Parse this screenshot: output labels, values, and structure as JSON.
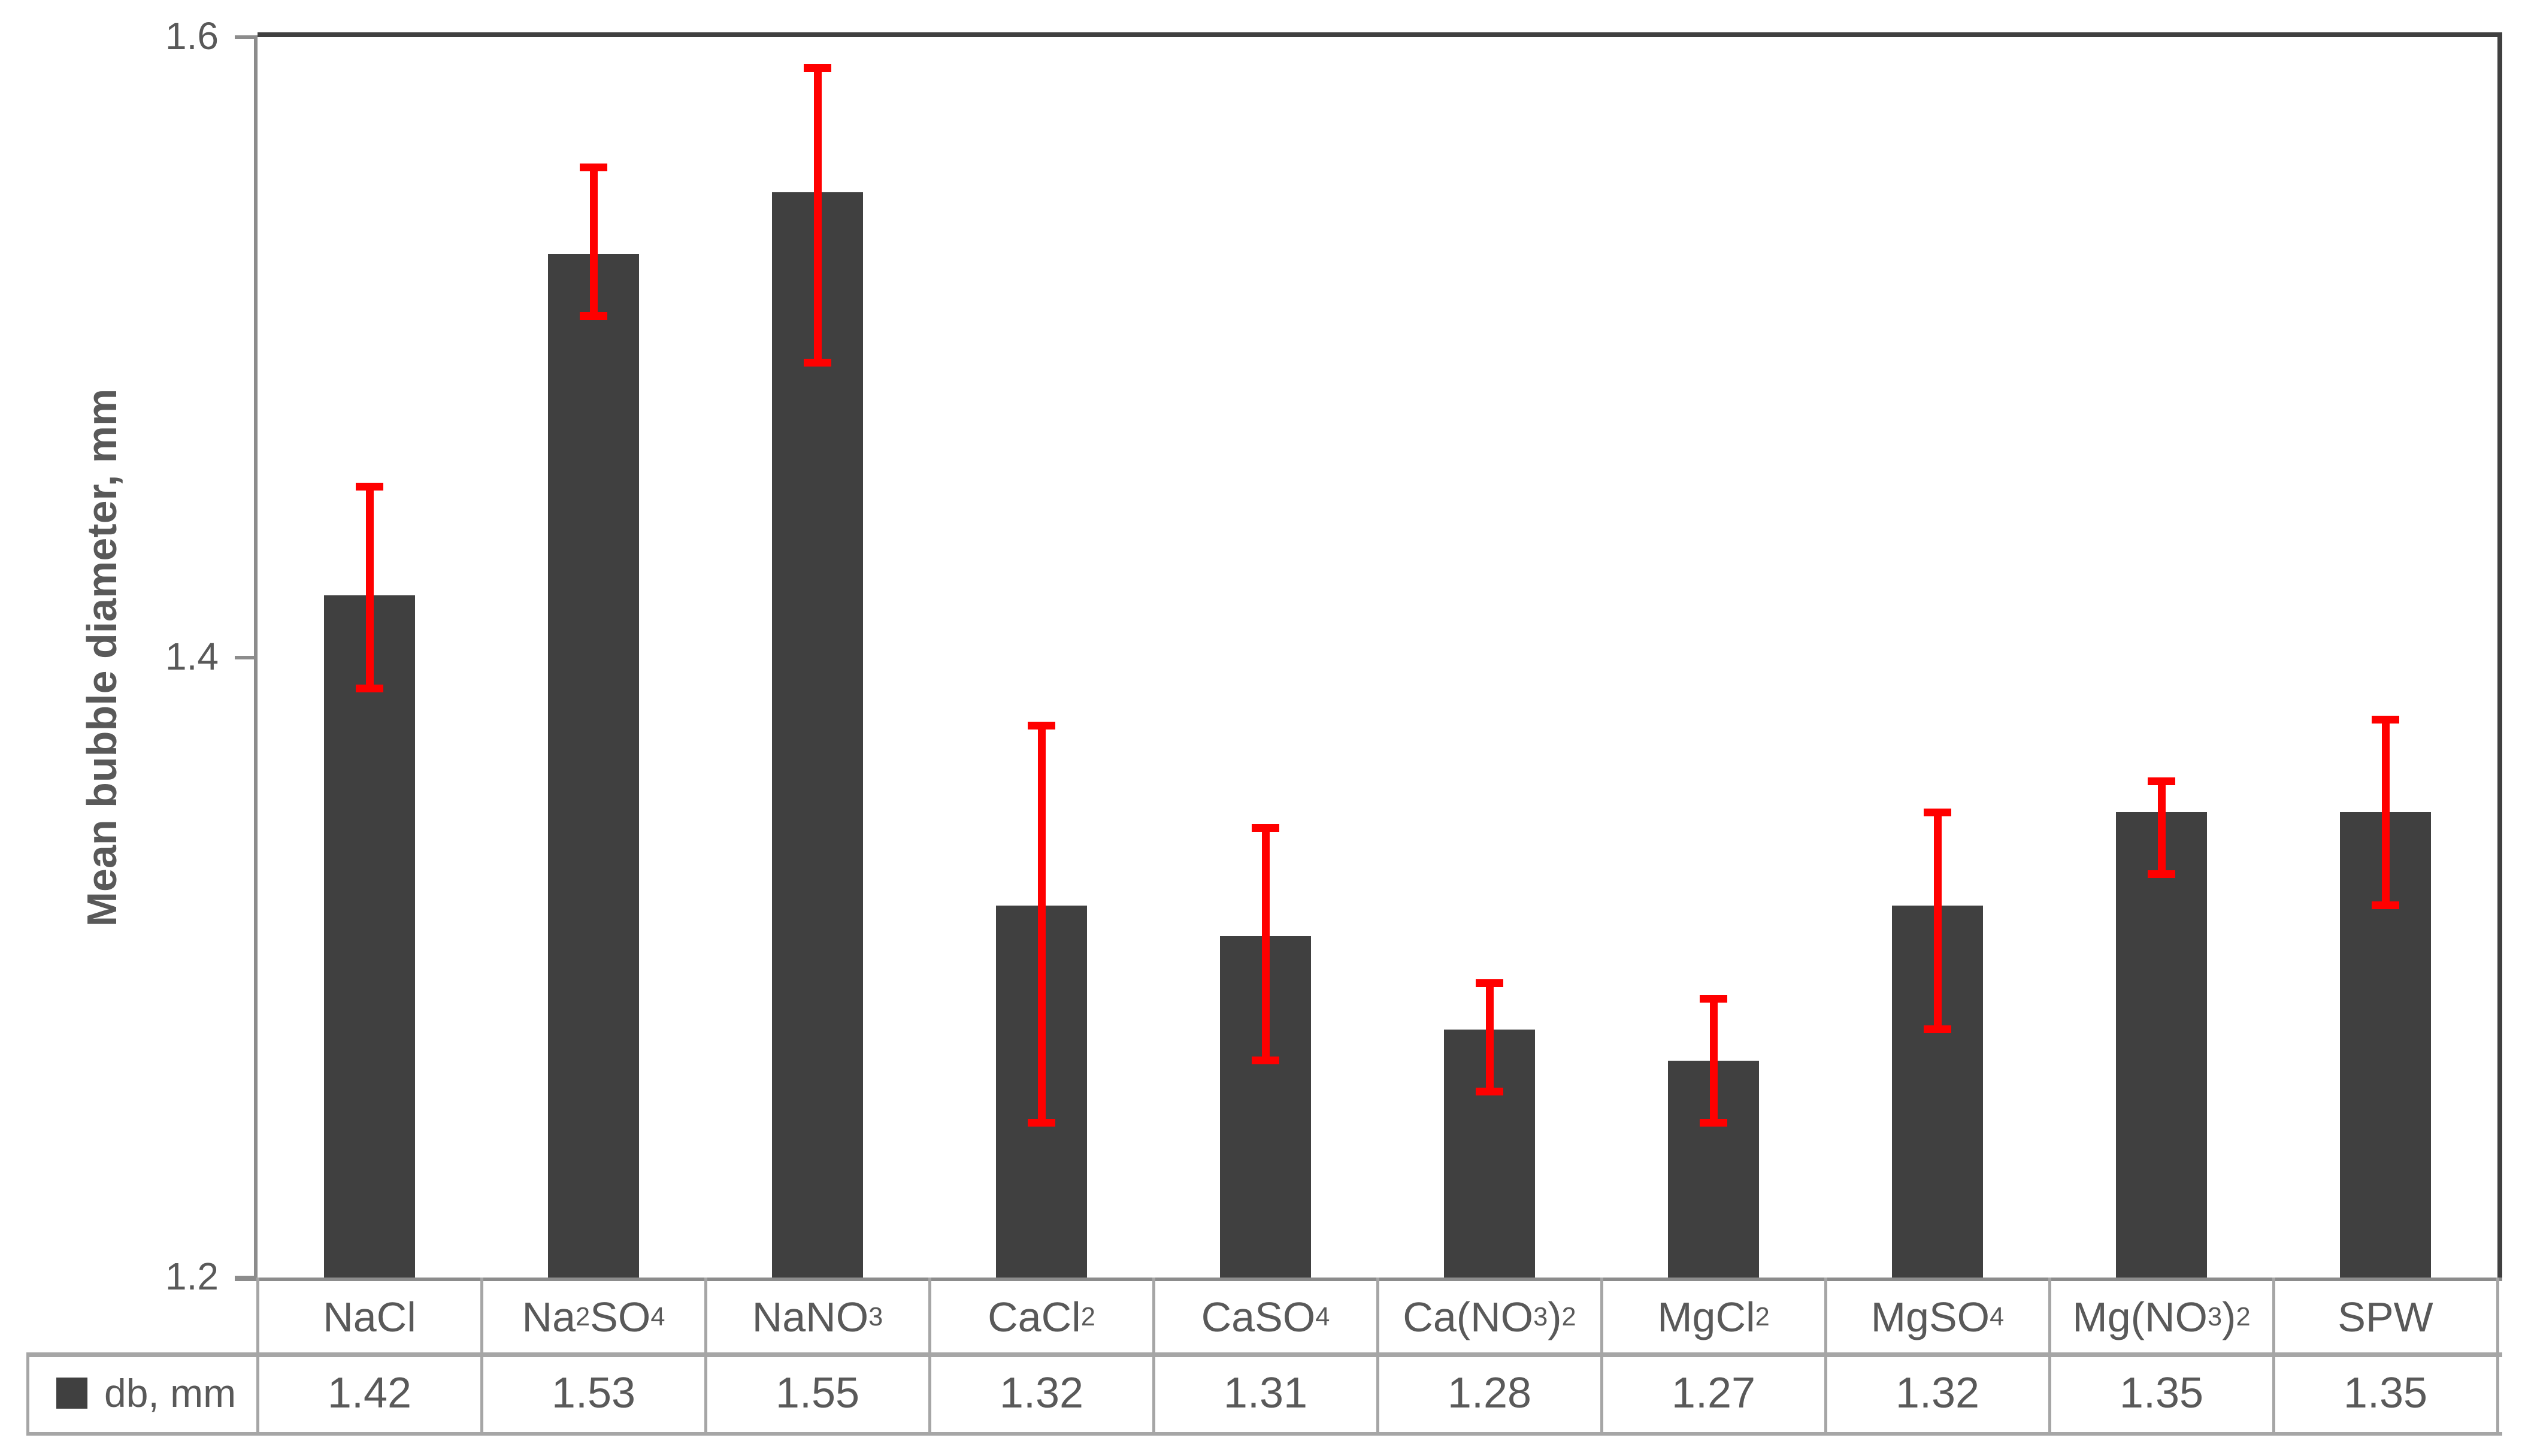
{
  "chart_data": {
    "type": "bar",
    "title": "",
    "xlabel": "",
    "ylabel": "Mean bubble diameter, mm",
    "ylim": [
      1.2,
      1.6
    ],
    "yticks": [
      1.2,
      1.4,
      1.6
    ],
    "ytick_labels": [
      "1.2",
      "1.4",
      "1.6"
    ],
    "grid": false,
    "legend_position": "table-row-header",
    "categories": [
      "NaCl",
      "Na_2SO_4",
      "NaNO_3",
      "CaCl_2",
      "CaSO_4",
      "Ca(NO_3)_2",
      "MgCl_2",
      "MgSO_4",
      "Mg(NO_3)_2",
      "SPW"
    ],
    "series": [
      {
        "name": "db, mm",
        "values": [
          1.42,
          1.53,
          1.55,
          1.32,
          1.31,
          1.28,
          1.27,
          1.32,
          1.35,
          1.35
        ],
        "error_cap_low": [
          1.39,
          1.51,
          1.495,
          1.25,
          1.27,
          1.26,
          1.25,
          1.28,
          1.33,
          1.32
        ],
        "error_cap_high": [
          1.455,
          1.558,
          1.59,
          1.378,
          1.345,
          1.295,
          1.29,
          1.35,
          1.36,
          1.38
        ]
      }
    ],
    "value_display": [
      "1.42",
      "1.53",
      "1.55",
      "1.32",
      "1.31",
      "1.28",
      "1.27",
      "1.32",
      "1.35",
      "1.35"
    ]
  },
  "table": {
    "row_label": "db, mm"
  },
  "colors": {
    "bar": "#404040",
    "error_bar": "#FF0000",
    "plot_border": "#404040",
    "axis_line": "#8C8C8C",
    "table_border": "#A6A6A6",
    "text": "#595959"
  }
}
